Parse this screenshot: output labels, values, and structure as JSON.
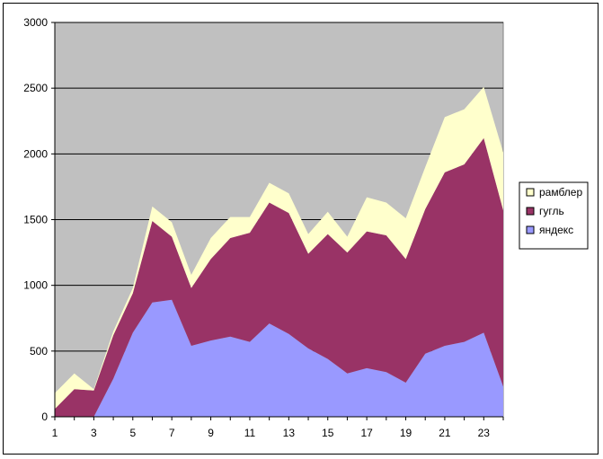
{
  "chart_data": {
    "type": "area",
    "stacked": true,
    "x": [
      1,
      2,
      3,
      4,
      5,
      6,
      7,
      8,
      9,
      10,
      11,
      12,
      13,
      14,
      15,
      16,
      17,
      18,
      19,
      20,
      21,
      22,
      23,
      24
    ],
    "x_tick_labels": [
      "1",
      "3",
      "5",
      "7",
      "9",
      "11",
      "13",
      "15",
      "17",
      "19",
      "21",
      "23"
    ],
    "x_tick_values": [
      1,
      3,
      5,
      7,
      9,
      11,
      13,
      15,
      17,
      19,
      21,
      23
    ],
    "y_ticks": [
      0,
      500,
      1000,
      1500,
      2000,
      2500,
      3000
    ],
    "ylim": [
      0,
      3000
    ],
    "xlim": [
      1,
      24
    ],
    "grid": "horizontal",
    "plot_background": "#c0c0c0",
    "legend_position": "right",
    "series": [
      {
        "name": "яндекс",
        "color": "#9999ff",
        "values": [
          0,
          0,
          0,
          290,
          640,
          870,
          890,
          540,
          580,
          610,
          570,
          710,
          630,
          520,
          440,
          330,
          370,
          340,
          260,
          480,
          540,
          570,
          640,
          230
        ]
      },
      {
        "name": "гугль",
        "color": "#993366",
        "values": [
          60,
          210,
          200,
          330,
          300,
          620,
          480,
          440,
          620,
          750,
          830,
          920,
          920,
          720,
          950,
          920,
          1040,
          1040,
          940,
          1100,
          1320,
          1350,
          1480,
          1340
        ]
      },
      {
        "name": "рамблер",
        "color": "#ffffcc",
        "values": [
          120,
          120,
          10,
          30,
          40,
          110,
          110,
          100,
          160,
          160,
          120,
          150,
          150,
          150,
          170,
          120,
          260,
          250,
          310,
          320,
          420,
          420,
          390,
          440
        ]
      }
    ],
    "legend_order": [
      "рамблер",
      "гугль",
      "яндекс"
    ]
  }
}
